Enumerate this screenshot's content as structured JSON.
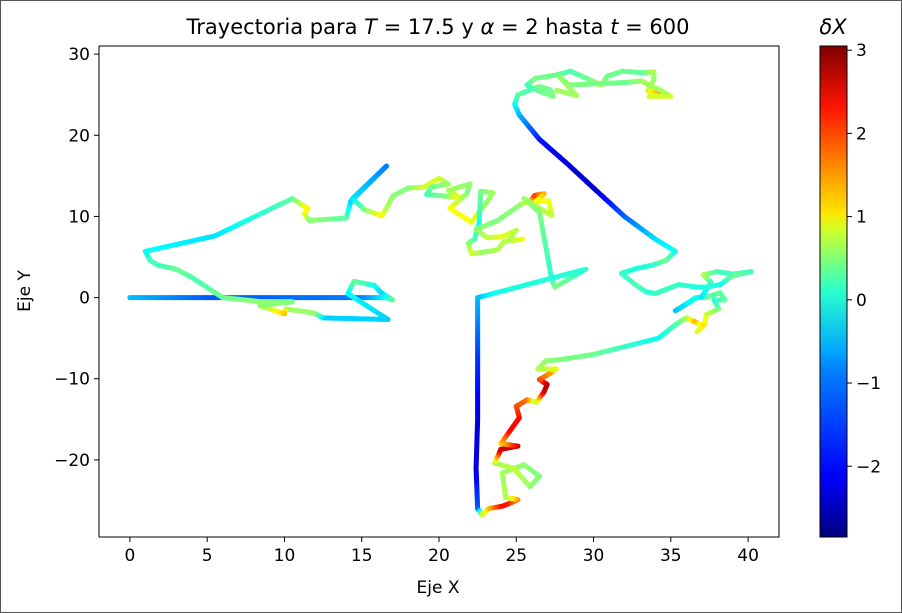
{
  "chart_data": {
    "type": "scatter",
    "title": {
      "prefix": "Trayectoria para ",
      "T_symbol": "T",
      "T_value": " = 17.5 y ",
      "alpha_symbol": "α",
      "alpha_value": " = 2 hasta ",
      "t_symbol": "t",
      "t_value": " = 600"
    },
    "xlabel": "Eje X",
    "ylabel": "Eje Y",
    "xlim": [
      -2,
      42
    ],
    "ylim": [
      -29.5,
      31
    ],
    "x_ticks": [
      0,
      5,
      10,
      15,
      20,
      25,
      30,
      35,
      40
    ],
    "y_ticks": [
      -20,
      -10,
      0,
      10,
      20,
      30
    ],
    "colorbar": {
      "label": "δX",
      "colormap": "jet",
      "range": [
        -2.85,
        3.05
      ],
      "ticks": [
        -2,
        -1,
        0,
        1,
        2,
        3
      ],
      "tick_labels": [
        "−2",
        "−1",
        "0",
        "1",
        "2",
        "3"
      ]
    },
    "series": [
      {
        "points": [
          [
            0,
            0,
            -1.0
          ],
          [
            5,
            0,
            -1.6
          ],
          [
            10,
            0,
            -1.5
          ],
          [
            15,
            0,
            -1.4
          ],
          [
            16.6,
            0,
            -0.6
          ],
          [
            17,
            -0.3,
            0
          ],
          [
            16.2,
            0.7,
            -0.9
          ],
          [
            15.8,
            1.5,
            -0.6
          ],
          [
            14.5,
            2,
            0
          ],
          [
            14.1,
            0.5,
            -0.6
          ],
          [
            16.7,
            -2.7,
            -0.9
          ],
          [
            12.5,
            -2.5,
            -0.9
          ],
          [
            11.9,
            -1.9,
            0.2
          ],
          [
            10.1,
            -1.4,
            0.3
          ],
          [
            10,
            -2,
            1.2
          ],
          [
            8.4,
            -1,
            0.2
          ],
          [
            10.5,
            -0.5,
            0.1
          ],
          [
            8.5,
            -0.5,
            0.2
          ],
          [
            6,
            0,
            0
          ],
          [
            4,
            2.5,
            -0.2
          ],
          [
            3,
            3.5,
            0
          ],
          [
            1.8,
            4,
            -0.3
          ],
          [
            1.3,
            4.6,
            -0.2
          ],
          [
            1,
            5.7,
            -0.6
          ],
          [
            5.5,
            7.6,
            -0.8
          ],
          [
            10.5,
            12.2,
            -0.1
          ],
          [
            11.5,
            11,
            0.9
          ],
          [
            11.3,
            10.3,
            0.8
          ],
          [
            11.6,
            9.5,
            0.2
          ],
          [
            14,
            9.8,
            -0.1
          ],
          [
            14.3,
            11.9,
            -0.9
          ],
          [
            16.6,
            16.2,
            -1.4
          ],
          [
            14.4,
            12.2,
            -0.8
          ],
          [
            15.2,
            10.8,
            0.1
          ],
          [
            16.3,
            10.1,
            0.9
          ],
          [
            16.6,
            11,
            0.4
          ],
          [
            17,
            12.5,
            0.2
          ],
          [
            18,
            13.5,
            0.1
          ],
          [
            19,
            13.6,
            0.6
          ],
          [
            20,
            14.7,
            0.6
          ],
          [
            20.6,
            14,
            0.3
          ],
          [
            19.5,
            13.6,
            0
          ],
          [
            19.2,
            12.7,
            -0.2
          ],
          [
            20.5,
            12.5,
            0.1
          ],
          [
            21.4,
            12.3,
            0.9
          ],
          [
            20.6,
            13.2,
            0.3
          ],
          [
            22,
            14,
            0.2
          ],
          [
            21.8,
            12.8,
            0.1
          ],
          [
            20.7,
            11,
            0.8
          ],
          [
            22.1,
            9.3,
            0.8
          ],
          [
            23.1,
            11.8,
            0.2
          ],
          [
            23.5,
            12.9,
            0.3
          ],
          [
            22.7,
            13.1,
            0.1
          ],
          [
            22.6,
            9.2,
            -0.5
          ],
          [
            22.3,
            7.2,
            -0.2
          ],
          [
            21.9,
            6.7,
            0.1
          ],
          [
            22.1,
            5.4,
            0.6
          ],
          [
            22.9,
            5.6,
            0.2
          ],
          [
            23.8,
            5.9,
            0.4
          ],
          [
            24.2,
            6.9,
            0.4
          ],
          [
            25.4,
            7.2,
            0.8
          ],
          [
            24.5,
            7,
            0.4
          ],
          [
            25,
            8.3,
            0.4
          ],
          [
            24.1,
            7.5,
            0.7
          ],
          [
            23.1,
            7.4,
            0.5
          ],
          [
            22.4,
            8.4,
            0.2
          ],
          [
            23.8,
            9.5,
            0.1
          ],
          [
            25.3,
            11.5,
            0.2
          ],
          [
            25.9,
            11.9,
            0.8
          ],
          [
            26.2,
            12.6,
            2.0
          ],
          [
            26.8,
            12.8,
            1.3
          ],
          [
            26.3,
            11.9,
            0.8
          ],
          [
            27.1,
            11.9,
            0.8
          ],
          [
            27.3,
            10.1,
            0.5
          ],
          [
            25.5,
            12.2,
            0.3
          ],
          [
            26.5,
            10.5,
            0.1
          ],
          [
            27.3,
            2.2,
            -0.4
          ],
          [
            27.5,
            1.3,
            0.1
          ],
          [
            29.5,
            3.5,
            -0.4
          ],
          [
            23.5,
            0.5,
            -0.5
          ],
          [
            22.5,
            0,
            -1.0
          ],
          [
            22.5,
            -7.5,
            -1.8
          ],
          [
            22.5,
            -15,
            -2.3
          ],
          [
            22.4,
            -21,
            -2.3
          ],
          [
            22.5,
            -26,
            -1.6
          ],
          [
            22.8,
            -26.8,
            0.5
          ],
          [
            23.2,
            -26,
            1.1
          ],
          [
            24.1,
            -25.7,
            2.3
          ],
          [
            24.5,
            -25.4,
            2.2
          ],
          [
            25.1,
            -24.9,
            1.5
          ],
          [
            24.3,
            -24.6,
            0.4
          ],
          [
            24.1,
            -21.6,
            0.3
          ],
          [
            25.5,
            -20.6,
            0.2
          ],
          [
            26.5,
            -22,
            0.1
          ],
          [
            25.9,
            -23.3,
            0.2
          ],
          [
            24.8,
            -21,
            0.5
          ],
          [
            23.6,
            -20.4,
            0.3
          ],
          [
            24,
            -18.7,
            2.6
          ],
          [
            25.1,
            -18.3,
            2.6
          ],
          [
            24,
            -18,
            1.1
          ],
          [
            24.6,
            -16.4,
            2.3
          ],
          [
            25.2,
            -14.8,
            2.3
          ],
          [
            25,
            -13.4,
            1.9
          ],
          [
            25.7,
            -12.6,
            1.7
          ],
          [
            26.3,
            -12.9,
            0.4
          ],
          [
            26.8,
            -11.6,
            2.5
          ],
          [
            27,
            -10.7,
            2.8
          ],
          [
            26.5,
            -10.1,
            1.9
          ],
          [
            27.3,
            -9.2,
            1.4
          ],
          [
            27.6,
            -8.8,
            0.7
          ],
          [
            26.4,
            -8.8,
            0.4
          ],
          [
            26.9,
            -7.8,
            0.2
          ],
          [
            28,
            -7.6,
            0.1
          ],
          [
            30,
            -7,
            0
          ],
          [
            34.2,
            -5,
            -0.6
          ],
          [
            35.4,
            -3.2,
            -0.2
          ],
          [
            36,
            -2.5,
            0.3
          ],
          [
            36.6,
            -3,
            1.3
          ],
          [
            37.1,
            -3.5,
            0.5
          ],
          [
            36.7,
            -4.2,
            0.6
          ],
          [
            37.2,
            -3.2,
            1.0
          ],
          [
            37.3,
            -2.1,
            0.6
          ],
          [
            38.1,
            -1.4,
            0.1
          ],
          [
            37.8,
            -0.3,
            -0.4
          ],
          [
            38.5,
            -0.3,
            -0.1
          ],
          [
            38.2,
            0.6,
            -0.1
          ],
          [
            37.2,
            0,
            -0.1
          ],
          [
            36.6,
            0,
            -0.3
          ],
          [
            35.6,
            -1.3,
            -0.8
          ],
          [
            35.3,
            -1.6,
            -1.0
          ],
          [
            36.7,
            0,
            -0.5
          ],
          [
            37,
            0.1,
            -0.8
          ],
          [
            37.6,
            1.9,
            -0.4
          ],
          [
            37.1,
            2.8,
            0.4
          ],
          [
            38,
            3.2,
            -0.2
          ],
          [
            39,
            2.9,
            -0.3
          ],
          [
            40.2,
            3.2,
            -0.3
          ],
          [
            39,
            2.7,
            0
          ],
          [
            38.2,
            1.6,
            -0.5
          ],
          [
            37.3,
            1.3,
            -0.4
          ],
          [
            36.7,
            1.3,
            -0.5
          ],
          [
            35.5,
            1.6,
            -0.3
          ],
          [
            34,
            0.5,
            -0.3
          ],
          [
            33.4,
            0.7,
            -0.4
          ],
          [
            32.7,
            1.6,
            -0.2
          ],
          [
            31.8,
            3,
            -0.3
          ],
          [
            32.8,
            3.6,
            -0.5
          ],
          [
            33.8,
            4,
            -0.4
          ],
          [
            34.7,
            4.6,
            0
          ],
          [
            35.3,
            5.7,
            -0.5
          ],
          [
            34,
            7.2,
            -0.8
          ],
          [
            32,
            10,
            -1.5
          ],
          [
            30,
            13.5,
            -2.4
          ],
          [
            28.3,
            16.5,
            -2.3
          ],
          [
            26.5,
            19.5,
            -2.0
          ],
          [
            25.2,
            22.5,
            -1.1
          ],
          [
            24.9,
            23.8,
            -0.7
          ],
          [
            25.1,
            25,
            -0.1
          ],
          [
            26.2,
            25.8,
            -0.2
          ],
          [
            26.5,
            26,
            0.1
          ],
          [
            27.2,
            25.6,
            0
          ],
          [
            27.4,
            24.8,
            0.1
          ],
          [
            26.5,
            25.4,
            0
          ],
          [
            25.7,
            26.2,
            -0.3
          ],
          [
            26.2,
            27,
            0.1
          ],
          [
            27.5,
            27.4,
            0
          ],
          [
            28.5,
            27.9,
            -0.2
          ],
          [
            29.7,
            26.9,
            0
          ],
          [
            30.5,
            26.2,
            0.5
          ],
          [
            30.9,
            27.3,
            0
          ],
          [
            31.9,
            27.9,
            0
          ],
          [
            33.2,
            27.7,
            -0.1
          ],
          [
            33.9,
            27.8,
            0.4
          ],
          [
            33.9,
            26.8,
            0.2
          ],
          [
            33.5,
            25.5,
            0.5
          ],
          [
            34.2,
            25.1,
            1.4
          ],
          [
            33.6,
            24.8,
            0.6
          ],
          [
            35,
            24.8,
            0.6
          ],
          [
            34.4,
            25.5,
            0.3
          ],
          [
            33.7,
            26.1,
            0.3
          ],
          [
            33.1,
            26.7,
            0.3
          ],
          [
            32,
            26.5,
            0
          ],
          [
            28.4,
            26.2,
            0.1
          ],
          [
            27.8,
            27.2,
            0.2
          ],
          [
            28.9,
            24.9,
            0.3
          ],
          [
            27.5,
            25.6,
            0.3
          ]
        ]
      }
    ]
  }
}
